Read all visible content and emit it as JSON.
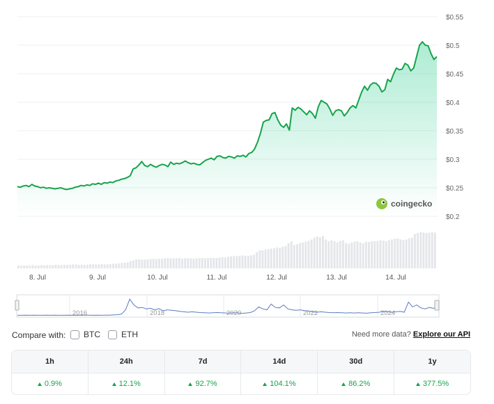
{
  "chart_data": {
    "type": "line",
    "price_axis": {
      "ticks": [
        "$0.55",
        "$0.5",
        "$0.45",
        "$0.4",
        "$0.35",
        "$0.3",
        "$0.25",
        "$0.2"
      ],
      "ylim": [
        0.2,
        0.55
      ]
    },
    "x_ticks": [
      "8. Jul",
      "9. Jul",
      "10. Jul",
      "11. Jul",
      "12. Jul",
      "13. Jul",
      "14. Jul"
    ],
    "price": [
      0.252,
      0.251,
      0.253,
      0.254,
      0.252,
      0.256,
      0.253,
      0.252,
      0.25,
      0.251,
      0.249,
      0.25,
      0.249,
      0.248,
      0.249,
      0.25,
      0.248,
      0.247,
      0.248,
      0.249,
      0.251,
      0.252,
      0.254,
      0.253,
      0.255,
      0.254,
      0.257,
      0.256,
      0.258,
      0.256,
      0.259,
      0.258,
      0.26,
      0.259,
      0.262,
      0.263,
      0.265,
      0.266,
      0.268,
      0.271,
      0.283,
      0.285,
      0.29,
      0.296,
      0.289,
      0.287,
      0.291,
      0.288,
      0.286,
      0.289,
      0.291,
      0.29,
      0.287,
      0.295,
      0.291,
      0.293,
      0.292,
      0.294,
      0.297,
      0.294,
      0.292,
      0.293,
      0.291,
      0.29,
      0.294,
      0.298,
      0.3,
      0.302,
      0.299,
      0.305,
      0.306,
      0.303,
      0.302,
      0.305,
      0.304,
      0.302,
      0.306,
      0.305,
      0.307,
      0.304,
      0.31,
      0.312,
      0.318,
      0.33,
      0.345,
      0.365,
      0.368,
      0.369,
      0.38,
      0.382,
      0.369,
      0.36,
      0.356,
      0.362,
      0.351,
      0.39,
      0.386,
      0.391,
      0.388,
      0.383,
      0.378,
      0.385,
      0.38,
      0.372,
      0.392,
      0.403,
      0.4,
      0.397,
      0.388,
      0.377,
      0.385,
      0.387,
      0.385,
      0.376,
      0.382,
      0.39,
      0.394,
      0.39,
      0.404,
      0.418,
      0.428,
      0.421,
      0.43,
      0.434,
      0.433,
      0.428,
      0.418,
      0.422,
      0.44,
      0.436,
      0.449,
      0.46,
      0.457,
      0.458,
      0.468,
      0.465,
      0.455,
      0.46,
      0.48,
      0.5,
      0.506,
      0.5,
      0.499,
      0.485,
      0.475,
      0.48
    ],
    "volume": [
      0.08,
      0.08,
      0.08,
      0.08,
      0.08,
      0.09,
      0.08,
      0.08,
      0.09,
      0.08,
      0.09,
      0.09,
      0.09,
      0.1,
      0.09,
      0.09,
      0.1,
      0.1,
      0.1,
      0.11,
      0.11,
      0.1,
      0.1,
      0.1,
      0.1,
      0.12,
      0.11,
      0.11,
      0.11,
      0.12,
      0.11,
      0.12,
      0.12,
      0.13,
      0.13,
      0.14,
      0.15,
      0.16,
      0.17,
      0.2,
      0.22,
      0.25,
      0.25,
      0.24,
      0.24,
      0.25,
      0.26,
      0.27,
      0.26,
      0.27,
      0.27,
      0.28,
      0.28,
      0.28,
      0.28,
      0.28,
      0.29,
      0.27,
      0.28,
      0.28,
      0.28,
      0.27,
      0.28,
      0.28,
      0.29,
      0.28,
      0.29,
      0.29,
      0.29,
      0.29,
      0.3,
      0.31,
      0.3,
      0.32,
      0.33,
      0.34,
      0.34,
      0.35,
      0.36,
      0.35,
      0.35,
      0.36,
      0.38,
      0.45,
      0.5,
      0.5,
      0.52,
      0.53,
      0.55,
      0.56,
      0.58,
      0.57,
      0.6,
      0.62,
      0.7,
      0.75,
      0.65,
      0.67,
      0.7,
      0.72,
      0.74,
      0.76,
      0.8,
      0.85,
      0.88,
      0.86,
      0.9,
      0.8,
      0.75,
      0.78,
      0.75,
      0.72,
      0.76,
      0.78,
      0.7,
      0.68,
      0.72,
      0.74,
      0.75,
      0.72,
      0.7,
      0.74,
      0.73,
      0.75,
      0.75,
      0.76,
      0.78,
      0.77,
      0.75,
      0.78,
      0.8,
      0.82,
      0.83,
      0.8,
      0.78,
      0.8,
      0.83,
      0.85,
      0.95,
      0.98,
      1.0,
      0.99,
      0.98,
      0.99,
      1.0,
      0.99
    ],
    "overview": {
      "labels": [
        "2016",
        "2018",
        "2020",
        "2022",
        "2024"
      ],
      "series": [
        0.02,
        0.02,
        0.03,
        0.02,
        0.03,
        0.02,
        0.02,
        0.03,
        0.02,
        0.03,
        0.02,
        0.02,
        0.03,
        0.02,
        0.02,
        0.02,
        0.03,
        0.03,
        0.02,
        0.03,
        0.02,
        0.03,
        0.03,
        0.04,
        0.05,
        0.08,
        0.3,
        0.85,
        0.55,
        0.4,
        0.42,
        0.35,
        0.38,
        0.3,
        0.36,
        0.25,
        0.3,
        0.28,
        0.26,
        0.22,
        0.2,
        0.18,
        0.2,
        0.18,
        0.16,
        0.15,
        0.14,
        0.15,
        0.16,
        0.15,
        0.14,
        0.13,
        0.15,
        0.14,
        0.12,
        0.14,
        0.16,
        0.25,
        0.45,
        0.35,
        0.3,
        0.6,
        0.42,
        0.4,
        0.55,
        0.35,
        0.3,
        0.28,
        0.3,
        0.26,
        0.24,
        0.2,
        0.18,
        0.2,
        0.18,
        0.16,
        0.15,
        0.16,
        0.15,
        0.14,
        0.15,
        0.14,
        0.15,
        0.14,
        0.13,
        0.15,
        0.16,
        0.18,
        0.22,
        0.2,
        0.18,
        0.2,
        0.22,
        0.18,
        0.7,
        0.45,
        0.55,
        0.4,
        0.35,
        0.42,
        0.38,
        0.45
      ]
    },
    "watermark": "coingecko"
  },
  "compare": {
    "label": "Compare with:",
    "options": [
      "BTC",
      "ETH"
    ],
    "more_text": "Need more data?",
    "link": "Explore our API"
  },
  "performance": [
    {
      "period": "1h",
      "value": "0.9%"
    },
    {
      "period": "24h",
      "value": "12.1%"
    },
    {
      "period": "7d",
      "value": "92.7%"
    },
    {
      "period": "14d",
      "value": "104.1%"
    },
    {
      "period": "30d",
      "value": "86.2%"
    },
    {
      "period": "1y",
      "value": "377.5%"
    }
  ],
  "colors": {
    "line": "#16a34a",
    "fill": "#16c784",
    "volume": "#e4e6ea",
    "overview": "#5b7bc0"
  }
}
